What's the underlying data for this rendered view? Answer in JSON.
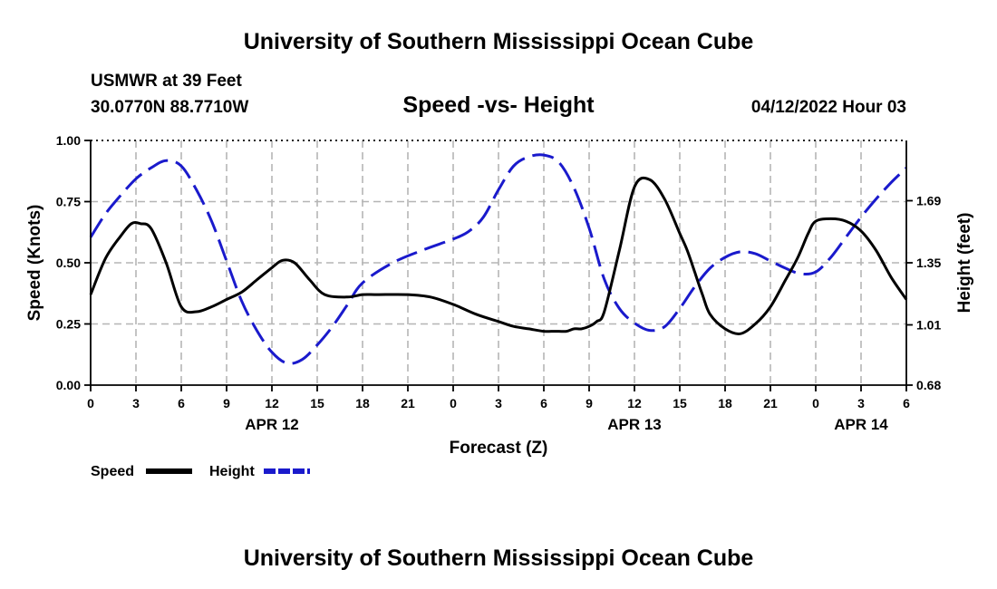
{
  "header": {
    "title": "University of Southern Mississippi Ocean Cube",
    "station": "USMWR at 39 Feet",
    "coords": "30.0770N  88.7710W",
    "datetime": "04/12/2022 Hour 03"
  },
  "footer": {
    "title": "University of Southern Mississippi Ocean Cube"
  },
  "colors": {
    "speed": "#000000",
    "height": "#1a1acc",
    "grid": "#b5b5b5"
  },
  "chart_data": {
    "type": "line",
    "title": "Speed -vs- Height",
    "xlabel": "Forecast (Z)",
    "ylabel": "Speed (Knots)",
    "y2label": "Height (feet)",
    "x_range": [
      0,
      54
    ],
    "x_tick_values": [
      0,
      3,
      6,
      9,
      12,
      15,
      18,
      21,
      24,
      27,
      30,
      33,
      36,
      39,
      42,
      45,
      48,
      51,
      54
    ],
    "x_tick_labels": [
      "0",
      "3",
      "6",
      "9",
      "12",
      "15",
      "18",
      "21",
      "0",
      "3",
      "6",
      "9",
      "12",
      "15",
      "18",
      "21",
      "0",
      "3",
      "6"
    ],
    "date_labels": [
      {
        "hour": 12,
        "label": "APR 12"
      },
      {
        "hour": 36,
        "label": "APR 13"
      },
      {
        "hour": 51,
        "label": "APR 14"
      }
    ],
    "ylim": [
      0,
      1.0
    ],
    "y_tick_values": [
      0,
      0.25,
      0.5,
      0.75,
      1.0
    ],
    "y_tick_labels": [
      "0.00",
      "0.25",
      "0.50",
      "0.75",
      "1.00"
    ],
    "y2lim": [
      0.68,
      2.02
    ],
    "y2_tick_values": [
      0.68,
      1.01,
      1.35,
      1.69
    ],
    "y2_tick_labels": [
      "0.68",
      "1.01",
      "1.35",
      "1.69"
    ],
    "grid": true,
    "legend_position": "bottom-left",
    "series": [
      {
        "name": "Speed",
        "axis": "left",
        "style": "solid",
        "x": [
          0,
          1,
          2,
          2.7,
          3.3,
          4,
          5,
          6,
          7,
          8,
          9,
          10,
          11,
          12,
          12.7,
          13.5,
          14.5,
          15.5,
          17,
          18,
          19,
          21,
          22.5,
          24,
          25.5,
          27,
          28,
          29,
          30,
          30.5,
          31,
          31.5,
          32,
          32.5,
          33,
          33.5,
          34,
          35,
          36,
          37,
          38,
          39,
          39.5,
          40,
          40.5,
          41,
          42,
          43,
          44,
          45,
          46,
          46.8,
          47.5,
          48,
          49,
          50,
          51,
          52,
          53,
          54
        ],
        "values": [
          0.37,
          0.52,
          0.61,
          0.66,
          0.66,
          0.64,
          0.5,
          0.32,
          0.3,
          0.32,
          0.35,
          0.38,
          0.43,
          0.48,
          0.51,
          0.5,
          0.43,
          0.37,
          0.36,
          0.37,
          0.37,
          0.37,
          0.36,
          0.33,
          0.29,
          0.26,
          0.24,
          0.23,
          0.22,
          0.22,
          0.22,
          0.22,
          0.23,
          0.23,
          0.24,
          0.26,
          0.3,
          0.55,
          0.81,
          0.84,
          0.76,
          0.62,
          0.55,
          0.46,
          0.37,
          0.29,
          0.23,
          0.21,
          0.25,
          0.32,
          0.43,
          0.52,
          0.62,
          0.67,
          0.68,
          0.67,
          0.63,
          0.55,
          0.44,
          0.35
        ]
      },
      {
        "name": "Height",
        "axis": "right",
        "style": "dashed",
        "x": [
          0,
          1,
          2,
          3,
          4,
          5,
          6,
          7,
          8,
          9,
          10,
          11,
          12,
          13,
          14,
          15,
          16,
          17,
          18,
          20,
          22,
          24,
          25,
          26,
          27,
          28,
          29,
          30,
          31,
          32,
          33,
          34,
          35,
          36,
          37,
          38,
          39,
          40,
          41,
          42,
          43,
          44,
          45,
          46,
          47,
          48,
          49,
          50,
          51,
          52,
          53,
          54
        ],
        "values": [
          1.49,
          1.62,
          1.72,
          1.81,
          1.87,
          1.91,
          1.88,
          1.75,
          1.58,
          1.36,
          1.14,
          0.98,
          0.86,
          0.8,
          0.82,
          0.9,
          1.0,
          1.12,
          1.24,
          1.35,
          1.42,
          1.48,
          1.52,
          1.6,
          1.75,
          1.88,
          1.93,
          1.94,
          1.9,
          1.76,
          1.54,
          1.26,
          1.1,
          1.02,
          0.98,
          1.0,
          1.1,
          1.22,
          1.32,
          1.38,
          1.41,
          1.4,
          1.36,
          1.32,
          1.29,
          1.3,
          1.38,
          1.49,
          1.6,
          1.7,
          1.79,
          1.87
        ]
      }
    ]
  }
}
